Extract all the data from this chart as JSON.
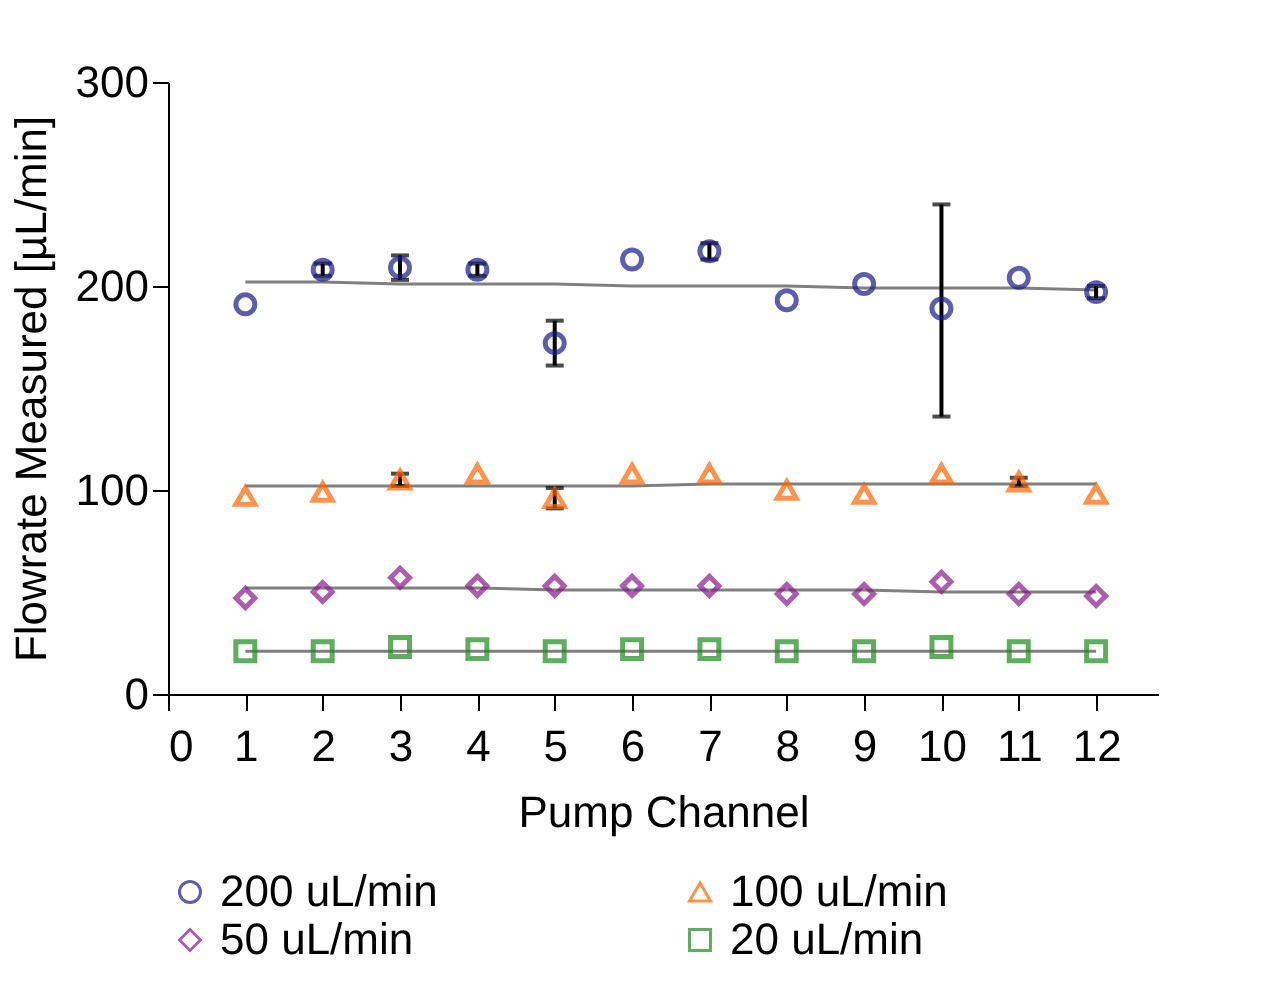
{
  "chart_data": {
    "type": "scatter",
    "xlabel": "Pump Channel",
    "ylabel": "Flowrate Measured  [µL/min]",
    "x": [
      1,
      2,
      3,
      4,
      5,
      6,
      7,
      8,
      9,
      10,
      11,
      12
    ],
    "xlim": [
      0,
      12.8
    ],
    "xticks": [
      0,
      1,
      2,
      3,
      4,
      5,
      6,
      7,
      8,
      9,
      10,
      11,
      12
    ],
    "ylim": [
      0,
      300
    ],
    "yticks": [
      0,
      100,
      200,
      300
    ],
    "grid": false,
    "legend": "bottom",
    "series": [
      {
        "name": "200 uL/min",
        "color": "#1a1a8c",
        "marker": "circle",
        "values": [
          191,
          208,
          209,
          208,
          172,
          213,
          217,
          193,
          201,
          189,
          204,
          197
        ],
        "errors": [
          null,
          3,
          6,
          3,
          11,
          null,
          4,
          null,
          null,
          [
            136,
            240
          ],
          null,
          3
        ]
      },
      {
        "name": "100 uL/min",
        "color": "#ff6600",
        "marker": "triangle",
        "values": [
          97,
          99,
          105,
          108,
          96,
          108,
          108,
          100,
          98,
          108,
          104,
          98
        ],
        "errors": [
          null,
          null,
          3,
          null,
          5,
          null,
          null,
          null,
          null,
          null,
          2,
          null
        ]
      },
      {
        "name": "50 uL/min",
        "color": "#8b1a8b",
        "marker": "diamond",
        "values": [
          47,
          50,
          57,
          53,
          53,
          53,
          53,
          49,
          49,
          55,
          49,
          48
        ]
      },
      {
        "name": "20 uL/min",
        "color": "#1a8c1a",
        "marker": "square",
        "values": [
          21,
          21,
          23,
          22,
          21,
          22,
          22,
          21,
          21,
          23,
          21,
          21
        ]
      },
      {
        "type": "line",
        "color": "#808080",
        "values": [
          202,
          202,
          201,
          201,
          201,
          200,
          200,
          200,
          199,
          199,
          199,
          198
        ]
      },
      {
        "type": "line",
        "color": "#808080",
        "values": [
          102,
          102,
          102,
          102,
          102,
          102,
          103,
          103,
          103,
          103,
          103,
          103
        ]
      },
      {
        "type": "line",
        "color": "#808080",
        "values": [
          52,
          52,
          52,
          52,
          51,
          51,
          51,
          51,
          51,
          50,
          50,
          50
        ]
      },
      {
        "type": "line",
        "color": "#808080",
        "values": [
          21,
          21,
          21,
          21,
          21,
          21,
          21,
          21,
          21,
          21,
          21,
          21
        ]
      }
    ]
  }
}
